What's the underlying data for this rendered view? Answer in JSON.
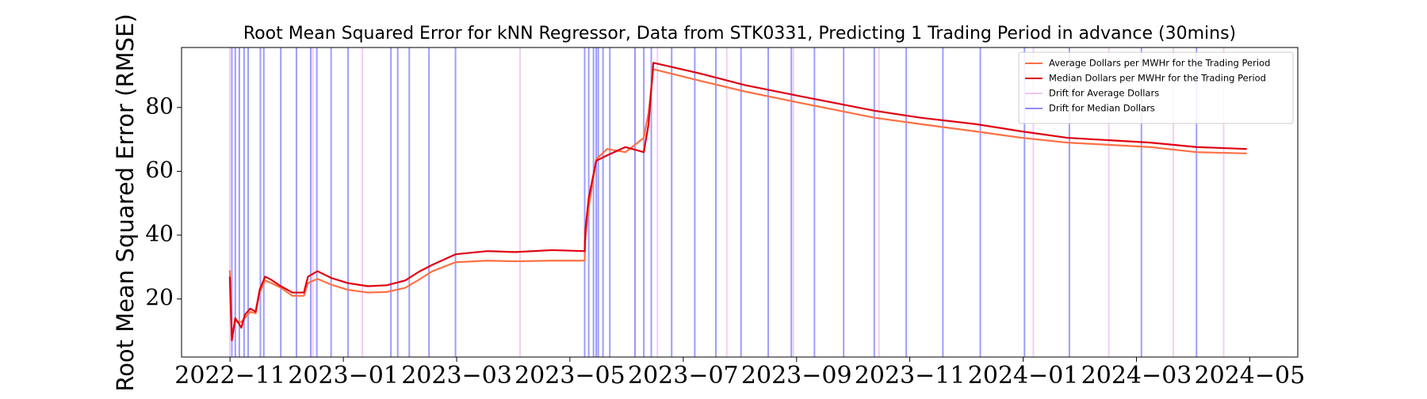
{
  "chart_data": {
    "type": "line",
    "title": "Root Mean Squared Error for kNN Regressor, Data from STK0331, Predicting 1 Trading Period in advance (30mins)",
    "y_label": "Root Mean Squared Error (RMSE)",
    "x": [
      2022.833,
      2022.836,
      2022.841,
      2022.85,
      2022.855,
      2022.863,
      2022.871,
      2022.877,
      2022.885,
      2022.894,
      2022.908,
      2022.925,
      2022.942,
      2022.948,
      2022.962,
      2022.982,
      2023.006,
      2023.036,
      2023.064,
      2023.091,
      2023.111,
      2023.131,
      2023.165,
      2023.212,
      2023.253,
      2023.307,
      2023.355,
      2023.356,
      2023.361,
      2023.372,
      2023.388,
      2023.415,
      2023.442,
      2023.449,
      2023.456,
      2023.524,
      2023.591,
      2023.673,
      2023.781,
      2023.849,
      2023.93,
      2023.998,
      2024.065,
      2024.187,
      2024.255,
      2024.329
    ],
    "series": [
      {
        "name": "Average Dollars per MWHr for the Trading Period",
        "color": "#ff7043",
        "values": [
          29,
          8.5,
          13,
          12.8,
          14,
          16,
          15.5,
          22,
          25.8,
          25,
          23.5,
          21,
          21,
          25,
          26.3,
          24.5,
          22.9,
          22,
          22.2,
          23.5,
          26,
          28.7,
          31.5,
          32,
          31.8,
          32,
          32,
          38.7,
          48.8,
          63.8,
          67,
          66,
          70.5,
          78.5,
          92,
          88.4,
          85,
          81.4,
          76.8,
          74.8,
          72.5,
          70.5,
          69,
          67.6,
          66,
          65.6
        ]
      },
      {
        "name": "Median Dollars per MWHr for the Trading Period",
        "color": "#e00010",
        "values": [
          27,
          7,
          14,
          11,
          15,
          17,
          16,
          23,
          27,
          26,
          24,
          22,
          22,
          27,
          28.7,
          26.6,
          25,
          24,
          24.3,
          25.8,
          28.5,
          30.7,
          34,
          35,
          34.7,
          35.3,
          35,
          41.6,
          51.7,
          63.3,
          65,
          67.6,
          66,
          74.8,
          94,
          90.7,
          87,
          83.5,
          79,
          76.8,
          74.8,
          72.5,
          70.5,
          69,
          67.6,
          67
        ]
      }
    ],
    "drift_lines": [
      {
        "name": "Drift for Average Dollars",
        "color": "#f2c4f0",
        "x": [
          2022.833,
          2022.955,
          2023.028,
          2023.26,
          2023.429,
          2023.462,
          2023.564,
          2023.662,
          2023.788,
          2024.015,
          2024.126,
          2024.221,
          2024.295
        ]
      },
      {
        "name": "Drift for Median Dollars",
        "color": "#8c8cff",
        "x": [
          2022.836,
          2022.841,
          2022.847,
          2022.854,
          2022.86,
          2022.878,
          2022.883,
          2022.908,
          2022.931,
          2022.952,
          2022.961,
          2022.982,
          2023.007,
          2023.07,
          2023.08,
          2023.097,
          2023.126,
          2023.165,
          2023.355,
          2023.361,
          2023.368,
          2023.372,
          2023.375,
          2023.382,
          2023.392,
          2023.429,
          2023.442,
          2023.453,
          2023.483,
          2023.517,
          2023.548,
          2023.585,
          2023.625,
          2023.659,
          2023.693,
          2023.736,
          2023.781,
          2023.828,
          2023.882,
          2023.937,
          2024.002,
          2024.068,
          2024.174,
          2024.255
        ]
      }
    ],
    "xlim": [
      2022.762,
      2024.404
    ],
    "xticks": [
      {
        "value": 2022.8333,
        "label": "2022−11"
      },
      {
        "value": 2023.0,
        "label": "2023−01"
      },
      {
        "value": 2023.1667,
        "label": "2023−03"
      },
      {
        "value": 2023.3333,
        "label": "2023−05"
      },
      {
        "value": 2023.5,
        "label": "2023−07"
      },
      {
        "value": 2023.6667,
        "label": "2023−09"
      },
      {
        "value": 2023.8333,
        "label": "2023−11"
      },
      {
        "value": 2024.0,
        "label": "2024−01"
      },
      {
        "value": 2024.1667,
        "label": "2024−03"
      },
      {
        "value": 2024.3333,
        "label": "2024−05"
      }
    ],
    "ylim": [
      1.8,
      98.8
    ],
    "yticks": [
      20,
      40,
      60,
      80
    ],
    "legend": "upper right"
  }
}
